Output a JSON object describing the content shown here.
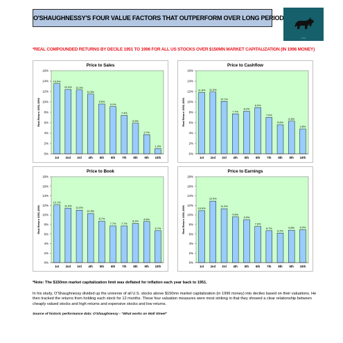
{
  "header": {
    "title": "O'SHAUGHNESSY'S FOUR VALUE FACTORS THAT OUTPERFORM OVER LONG PERIODS OF TIME",
    "subtitle": "*REAL COMPOUNDED RETURNS BY DECILE 1951 TO 1996 FOR ALL US STOCKS OVER $150MN MARKET CAPITALIZATION (IN 1996 MONEY)"
  },
  "colors": {
    "plot_bg": "#ccffcc",
    "bar_fill": "#99ccff",
    "bar_stroke": "#1a1a1a",
    "title_bg": "#b3c7e2",
    "subtitle_red": "#e8141d"
  },
  "icons": {
    "logo": "bull-logo"
  },
  "chart_data": [
    {
      "type": "bar",
      "title": "Price to Sales",
      "ylabel": "Real Return 1951-1996",
      "categories": [
        "1st",
        "2nd",
        "3rd",
        "4th",
        "5th",
        "6th",
        "7th",
        "8th",
        "9th",
        "10th"
      ],
      "values": [
        13.5,
        12.4,
        12.3,
        11.5,
        9.6,
        9.1,
        7.4,
        5.9,
        3.7,
        1.0
      ],
      "value_labels": [
        "13.5%",
        "12.4%",
        "12.3%",
        "11.5%",
        "9.6%",
        "9.1%",
        "7.4%",
        "5.9%",
        "3.7%",
        "1.0%"
      ],
      "ylim": [
        0,
        16
      ],
      "yticks": [
        "0%",
        "2%",
        "4%",
        "6%",
        "8%",
        "10%",
        "12%",
        "14%",
        "16%"
      ],
      "grid": false
    },
    {
      "type": "bar",
      "title": "Price to Cashflow",
      "ylabel": "Real Return 1951-1996",
      "categories": [
        "1st",
        "2nd",
        "3rd",
        "4th",
        "5th",
        "6th",
        "7th",
        "8th",
        "9th",
        "10th"
      ],
      "values": [
        11.8,
        11.9,
        10.1,
        7.7,
        8.2,
        8.9,
        7.0,
        5.6,
        6.3,
        4.8
      ],
      "value_labels": [
        "11.8%",
        "11.9%",
        "10.1%",
        "7.7%",
        "8.2%",
        "8.9%",
        "7.0%",
        "5.6%",
        "6.3%",
        "4.8%"
      ],
      "ylim": [
        0,
        16
      ],
      "yticks": [
        "0%",
        "2%",
        "4%",
        "6%",
        "8%",
        "10%",
        "12%",
        "14%",
        "16%"
      ],
      "grid": false
    },
    {
      "type": "bar",
      "title": "Price to Book",
      "ylabel": "Real Return 1951-1996",
      "categories": [
        "1st",
        "2nd",
        "3rd",
        "4th",
        "5th",
        "6th",
        "7th",
        "8th",
        "9th",
        "10th"
      ],
      "values": [
        12.1,
        11.4,
        11.0,
        10.3,
        8.7,
        7.7,
        7.7,
        8.2,
        8.6,
        6.7
      ],
      "value_labels": [
        "12.1%",
        "11.4%",
        "11.0%",
        "10.3%",
        "8.7%",
        "7.7%",
        "7.7%",
        "8.2%",
        "8.6%",
        "6.7%"
      ],
      "ylim": [
        0,
        18
      ],
      "yticks": [
        "0%",
        "2%",
        "4%",
        "6%",
        "8%",
        "10%",
        "12%",
        "14%",
        "16%",
        "18%"
      ],
      "grid": false
    },
    {
      "type": "bar",
      "title": "Price to Earnings",
      "ylabel": "Real Return 1951-1996",
      "categories": [
        "1st",
        "2nd",
        "3rd",
        "4th",
        "5th",
        "6th",
        "7th",
        "8th",
        "9th",
        "10th"
      ],
      "values": [
        10.9,
        12.9,
        11.3,
        9.6,
        9.0,
        7.6,
        6.7,
        6.2,
        6.8,
        6.9
      ],
      "value_labels": [
        "10.9%",
        "12.9%",
        "11.3%",
        "9.6%",
        "9.0%",
        "7.6%",
        "6.7%",
        "6.2%",
        "6.8%",
        "6.9%"
      ],
      "ylim": [
        0,
        18
      ],
      "yticks": [
        "0%",
        "2%",
        "4%",
        "6%",
        "8%",
        "10%",
        "12%",
        "14%",
        "16%",
        "18%"
      ],
      "grid": false
    }
  ],
  "notes": {
    "market_cap_note": "*Note: The $150mn market capitalization limit was deflated for inflation each year back to 1951.",
    "study_description": "In his study, O'Shaughnessy divided up the universe of all U.S. stocks above $150mn market capitalization (in 1996 money) into deciles based on their valuations. He then tracked the returns from holding each stock for 12 months. These four valuation measures were most striking in that they showed a clear relationship between cheaply valued stocks and high returns and expensive stocks and low returns.",
    "source": "Source of historic performance data: O'Shaughnessy - \"What works on Wall Street\""
  }
}
